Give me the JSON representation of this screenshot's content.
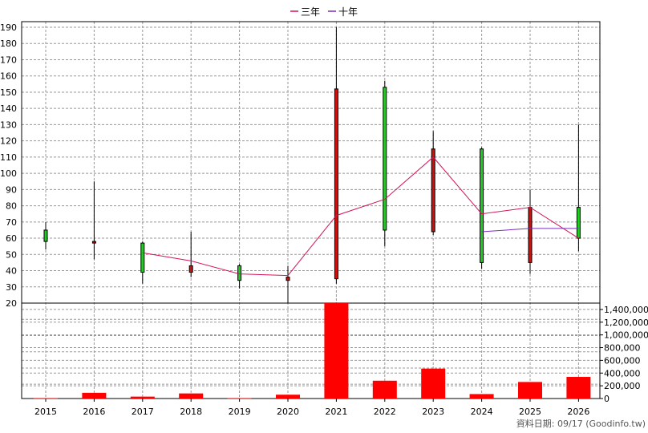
{
  "chart_data": {
    "type": "candlestick",
    "legend": [
      {
        "label": "三年",
        "color": "#d4145a"
      },
      {
        "label": "十年",
        "color": "#7b2fbf"
      }
    ],
    "legend_position": "top-center",
    "grid": true,
    "price_axis": {
      "ylim": [
        20,
        190
      ],
      "ticks": [
        190,
        180,
        170,
        160,
        150,
        140,
        130,
        120,
        110,
        100,
        90,
        80,
        70,
        60,
        50,
        40,
        30,
        20
      ]
    },
    "volume_axis": {
      "ylim": [
        0,
        1500000
      ],
      "ticks": [
        "1,400,000",
        "1,200,000",
        "1,000,000",
        "800,000",
        "600,000",
        "400,000",
        "200,000",
        "0"
      ],
      "tick_values": [
        1400000,
        1200000,
        1000000,
        800000,
        600000,
        400000,
        200000,
        0
      ]
    },
    "years": [
      "2015",
      "2016",
      "2017",
      "2018",
      "2019",
      "2020",
      "2021",
      "2022",
      "2023",
      "2024",
      "2025",
      "2026"
    ],
    "candles": [
      {
        "year": "2015",
        "open": 58,
        "close": 65,
        "high": 70,
        "low": 53
      },
      {
        "year": "2016",
        "open": 58,
        "close": 57,
        "high": 95,
        "low": 47
      },
      {
        "year": "2017",
        "open": 39,
        "close": 57,
        "high": 58,
        "low": 32
      },
      {
        "year": "2018",
        "open": 43,
        "close": 39,
        "high": 64,
        "low": 36
      },
      {
        "year": "2019",
        "open": 34,
        "close": 43,
        "high": 44,
        "low": 29
      },
      {
        "year": "2020",
        "open": 36,
        "close": 34,
        "high": 43,
        "low": 20
      },
      {
        "year": "2021",
        "open": 152,
        "close": 35,
        "high": 190,
        "low": 32
      },
      {
        "year": "2022",
        "open": 65,
        "close": 153,
        "high": 157,
        "low": 55
      },
      {
        "year": "2023",
        "open": 115,
        "close": 64,
        "high": 126,
        "low": 62
      },
      {
        "year": "2024",
        "open": 45,
        "close": 115,
        "high": 116,
        "low": 41
      },
      {
        "year": "2025",
        "open": 79,
        "close": 45,
        "high": 90,
        "low": 38
      },
      {
        "year": "2026",
        "open": 60,
        "close": 79,
        "high": 130,
        "low": 52
      }
    ],
    "up_color": "#22cc22",
    "down_color": "#cc1111",
    "series": [
      {
        "name": "三年",
        "color": "#d4145a",
        "values": [
          null,
          null,
          51,
          46,
          38,
          37,
          74,
          84,
          110,
          75,
          79,
          60
        ]
      },
      {
        "name": "十年",
        "color": "#7b2fbf",
        "values": [
          null,
          null,
          null,
          null,
          null,
          null,
          null,
          null,
          null,
          64,
          66,
          66
        ]
      }
    ],
    "volume": [
      5000,
      90000,
      30000,
      80000,
      5000,
      60000,
      1500000,
      280000,
      470000,
      70000,
      260000,
      340000
    ],
    "volume_color": "#ff0000"
  },
  "footer": "資料日期: 09/17  (Goodinfo.tw)"
}
